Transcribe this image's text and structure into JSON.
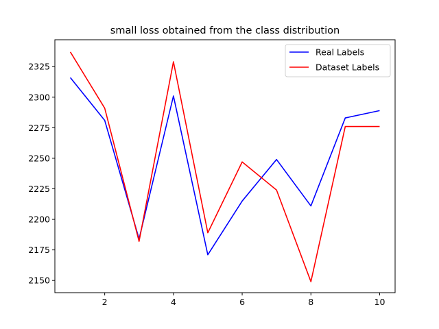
{
  "chart_data": {
    "type": "line",
    "title": "small loss obtained from the class distribution",
    "xlabel": "",
    "ylabel": "",
    "x": [
      1,
      2,
      3,
      4,
      5,
      6,
      7,
      8,
      9,
      10
    ],
    "xlim": [
      0.55,
      10.45
    ],
    "ylim": [
      2140,
      2347
    ],
    "xticks": [
      2,
      4,
      6,
      8,
      10
    ],
    "yticks": [
      2150,
      2175,
      2200,
      2225,
      2250,
      2275,
      2300,
      2325
    ],
    "grid": false,
    "legend_position": "top-right",
    "series": [
      {
        "name": "Real Labels",
        "color": "#0000ff",
        "values": [
          2316,
          2281,
          2184,
          2301,
          2171,
          2215,
          2249,
          2211,
          2283,
          2289
        ]
      },
      {
        "name": "Dataset Labels",
        "color": "#ff0000",
        "values": [
          2337,
          2291,
          2182,
          2329,
          2189,
          2247,
          2224,
          2149,
          2276,
          2276
        ]
      }
    ]
  }
}
